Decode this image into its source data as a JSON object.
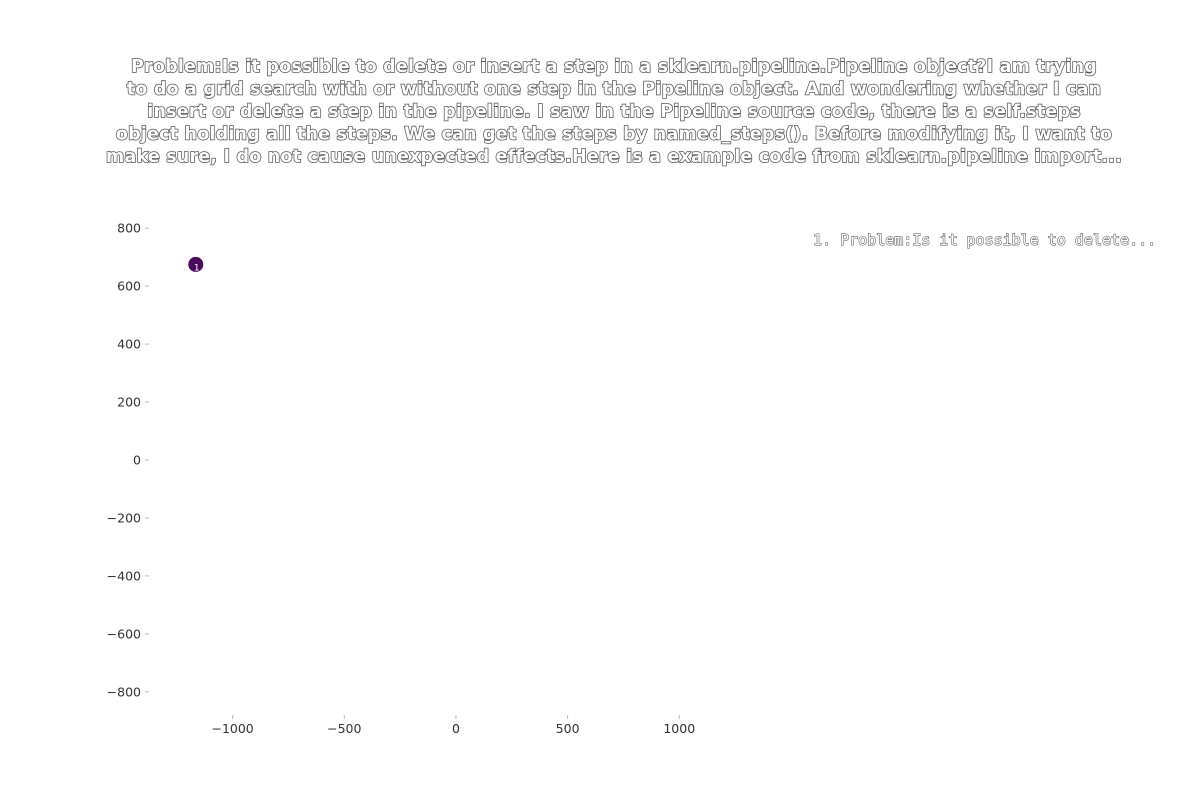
{
  "chart_data": {
    "type": "scatter",
    "title": "Problem:Is it possible to delete or insert a step in a sklearn.pipeline.Pipeline object?I am trying to do a grid search with or without one step in the Pipeline object. And wondering whether I can insert or delete a step in the pipeline. I saw in the Pipeline source code, there is a self.steps object holding all the steps. We can get the steps by named_steps(). Before modifying it, I want to make sure, I do not cause unexpected effects.Here is a example code from sklearn.pipeline import...",
    "title_lines": [
      "Problem:Is it possible to delete or insert a step in a sklearn.pipeline.Pipeline object?I am trying",
      "to do a grid search with or without one step in the Pipeline object. And wondering whether I can",
      "insert or delete a step in the pipeline. I saw in the Pipeline source code, there is a self.steps",
      "object holding all the steps. We can get the steps by named_steps(). Before modifying it, I want to",
      "make sure, I do not cause unexpected effects.Here is a example code from sklearn.pipeline import..."
    ],
    "xlabel": "",
    "ylabel": "",
    "xlim": [
      -1370,
      1160
    ],
    "ylim": [
      -880,
      880
    ],
    "x_ticks": [
      -1000,
      -500,
      0,
      500,
      1000
    ],
    "x_tick_labels": [
      "−1000",
      "−500",
      "0",
      "500",
      "1000"
    ],
    "y_ticks": [
      -800,
      -600,
      -400,
      -200,
      0,
      200,
      400,
      600,
      800
    ],
    "y_tick_labels": [
      "−800",
      "−600",
      "−400",
      "−200",
      "0",
      "200",
      "400",
      "600",
      "800"
    ],
    "grid": false,
    "legend_placement": "top-right",
    "points": [
      {
        "x": -1165,
        "y": 675,
        "label": "1",
        "color": "#4b0a5c"
      }
    ],
    "legend": [
      {
        "text": "1. Problem:Is it possible to delete..."
      }
    ]
  }
}
